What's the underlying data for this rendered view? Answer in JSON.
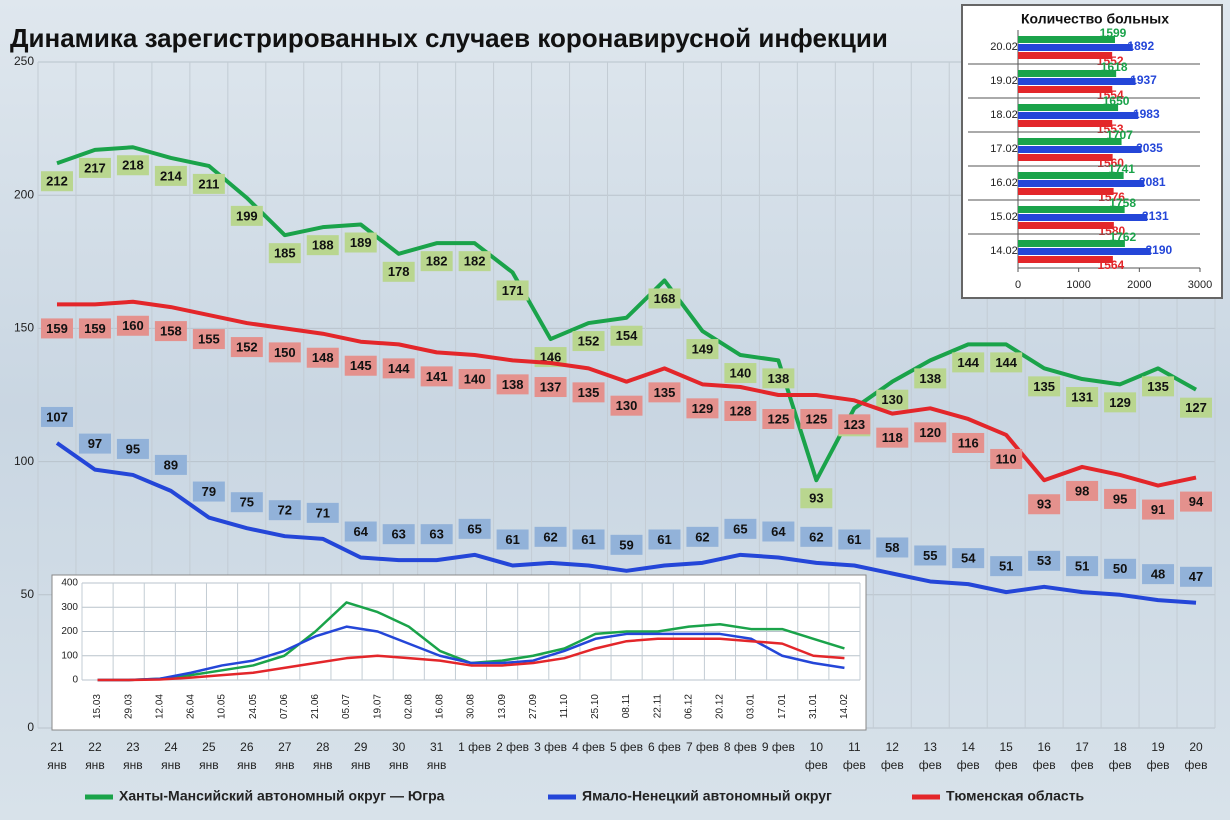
{
  "title": "Динамика зарегистрированных случаев коронавирусной инфекции",
  "chart_data": [
    {
      "type": "line",
      "ylim": [
        0,
        250
      ],
      "yticks": [
        0,
        50,
        100,
        150,
        200,
        250
      ],
      "grid": true,
      "categories": [
        [
          "21",
          "янв"
        ],
        [
          "22",
          "янв"
        ],
        [
          "23",
          "янв"
        ],
        [
          "24",
          "янв"
        ],
        [
          "25",
          "янв"
        ],
        [
          "26",
          "янв"
        ],
        [
          "27",
          "янв"
        ],
        [
          "28",
          "янв"
        ],
        [
          "29",
          "янв"
        ],
        [
          "30",
          "янв"
        ],
        [
          "31",
          "янв"
        ],
        [
          "1 фев"
        ],
        [
          "2 фев"
        ],
        [
          "3 фев"
        ],
        [
          "4 фев"
        ],
        [
          "5 фев"
        ],
        [
          "6 фев"
        ],
        [
          "7 фев"
        ],
        [
          "8 фев"
        ],
        [
          "9 фев"
        ],
        [
          "10",
          "фев"
        ],
        [
          "11",
          "фев"
        ],
        [
          "12",
          "фев"
        ],
        [
          "13",
          "фев"
        ],
        [
          "14",
          "фев"
        ],
        [
          "15",
          "фев"
        ],
        [
          "16",
          "фев"
        ],
        [
          "17",
          "фев"
        ],
        [
          "18",
          "фев"
        ],
        [
          "19",
          "фев"
        ],
        [
          "20",
          "фев"
        ]
      ],
      "legend": "bottom",
      "series": [
        {
          "name": "Ханты-Мансийский автономный округ — Югра",
          "color": "#1aa34a",
          "label_color": "#b9d68f",
          "values": [
            212,
            217,
            218,
            214,
            211,
            199,
            185,
            188,
            189,
            178,
            182,
            182,
            171,
            146,
            152,
            154,
            168,
            149,
            140,
            138,
            93,
            120,
            130,
            138,
            144,
            144,
            135,
            131,
            129,
            135,
            127
          ]
        },
        {
          "name": "Ямало-Ненецкий автономный округ",
          "color": "#2446d8",
          "label_color": "#92b2d9",
          "values": [
            107,
            97,
            95,
            89,
            79,
            75,
            72,
            71,
            64,
            63,
            63,
            65,
            61,
            62,
            61,
            59,
            61,
            62,
            65,
            64,
            62,
            61,
            58,
            55,
            54,
            51,
            53,
            51,
            50,
            48,
            47
          ]
        },
        {
          "name": "Тюменская область",
          "color": "#e3262a",
          "label_color": "#e4918d",
          "values": [
            159,
            159,
            160,
            158,
            155,
            152,
            150,
            148,
            145,
            144,
            141,
            140,
            138,
            137,
            135,
            130,
            135,
            129,
            128,
            125,
            125,
            123,
            118,
            120,
            116,
            110,
            93,
            98,
            95,
            91,
            94
          ]
        }
      ]
    },
    {
      "type": "hbar",
      "title": "Количество больных",
      "categories": [
        "20.02",
        "19.02",
        "18.02",
        "17.02",
        "16.02",
        "15.02",
        "14.02"
      ],
      "xlim": [
        0,
        3000
      ],
      "xticks": [
        0,
        1000,
        2000,
        3000
      ],
      "series": [
        {
          "color": "#1aa34a",
          "values": [
            1599,
            1618,
            1650,
            1707,
            1741,
            1758,
            1762
          ]
        },
        {
          "color": "#2446d8",
          "values": [
            1892,
            1937,
            1983,
            2035,
            2081,
            2131,
            2190
          ]
        },
        {
          "color": "#e3262a",
          "values": [
            1552,
            1554,
            1553,
            1560,
            1576,
            1580,
            1564
          ]
        }
      ]
    },
    {
      "type": "line",
      "ylim": [
        0,
        400
      ],
      "yticks": [
        0,
        100,
        200,
        300,
        400
      ],
      "grid": true,
      "categories": [
        "15.03",
        "29.03",
        "12.04",
        "26.04",
        "10.05",
        "24.05",
        "07.06",
        "21.06",
        "05.07",
        "19.07",
        "02.08",
        "16.08",
        "30.08",
        "13.09",
        "27.09",
        "11.10",
        "25.10",
        "08.11",
        "22.11",
        "06.12",
        "20.12",
        "03.01",
        "17.01",
        "31.01",
        "14.02"
      ],
      "series": [
        {
          "color": "#1aa34a",
          "values": [
            0,
            0,
            5,
            20,
            40,
            60,
            100,
            200,
            320,
            280,
            220,
            120,
            70,
            80,
            100,
            130,
            190,
            200,
            200,
            220,
            230,
            210,
            210,
            170,
            130
          ]
        },
        {
          "color": "#2446d8",
          "values": [
            0,
            0,
            5,
            30,
            60,
            80,
            120,
            180,
            220,
            200,
            150,
            100,
            70,
            70,
            80,
            120,
            170,
            190,
            190,
            190,
            190,
            170,
            100,
            70,
            50
          ]
        },
        {
          "color": "#e3262a",
          "values": [
            0,
            0,
            2,
            10,
            20,
            30,
            50,
            70,
            90,
            100,
            90,
            80,
            60,
            60,
            70,
            90,
            130,
            160,
            170,
            170,
            170,
            160,
            150,
            100,
            90
          ]
        }
      ]
    }
  ]
}
